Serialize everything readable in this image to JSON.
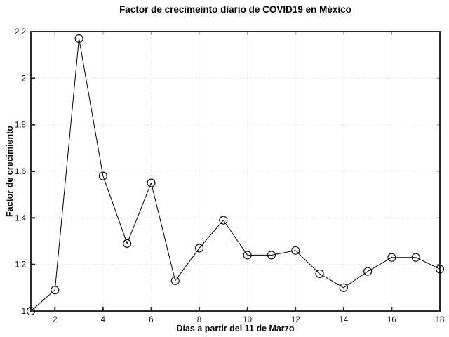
{
  "figure": {
    "background": "#ffffff"
  },
  "chart_data": {
    "type": "line",
    "title": "Factor de crecimeinto díario de COVID19 en México",
    "xlabel": "Días a partir del 11 de Marzo",
    "ylabel": "Factor de crecimiento",
    "x": [
      1,
      2,
      3,
      4,
      5,
      6,
      7,
      8,
      9,
      10,
      11,
      12,
      13,
      14,
      15,
      16,
      17,
      18
    ],
    "y": [
      1.0,
      1.09,
      2.17,
      1.58,
      1.29,
      1.55,
      1.13,
      1.27,
      1.39,
      1.24,
      1.24,
      1.26,
      1.16,
      1.1,
      1.17,
      1.23,
      1.23,
      1.18
    ],
    "xlim": [
      1,
      18
    ],
    "ylim": [
      1,
      2.2
    ],
    "xticks": {
      "values": [
        2,
        4,
        6,
        8,
        10,
        12,
        14,
        16,
        18
      ],
      "labels": [
        "2",
        "4",
        "6",
        "8",
        "10",
        "12",
        "14",
        "16",
        "18"
      ]
    },
    "yticks": {
      "values": [
        1,
        1.2,
        1.4,
        1.6,
        1.8,
        2,
        2.2
      ],
      "labels": [
        "1",
        "1.2",
        "1.4",
        "1.6",
        "1.8",
        "2",
        "2.2"
      ]
    },
    "grid": true,
    "legend": null,
    "style": {
      "line_color": "#000000",
      "line_width": 1,
      "marker": "open-circle",
      "marker_radius": 5.5,
      "marker_stroke": "#000000",
      "grid_color": "#d9d9d9",
      "axis_color": "#2b2b2b",
      "tick_text_color": "#111111"
    }
  }
}
